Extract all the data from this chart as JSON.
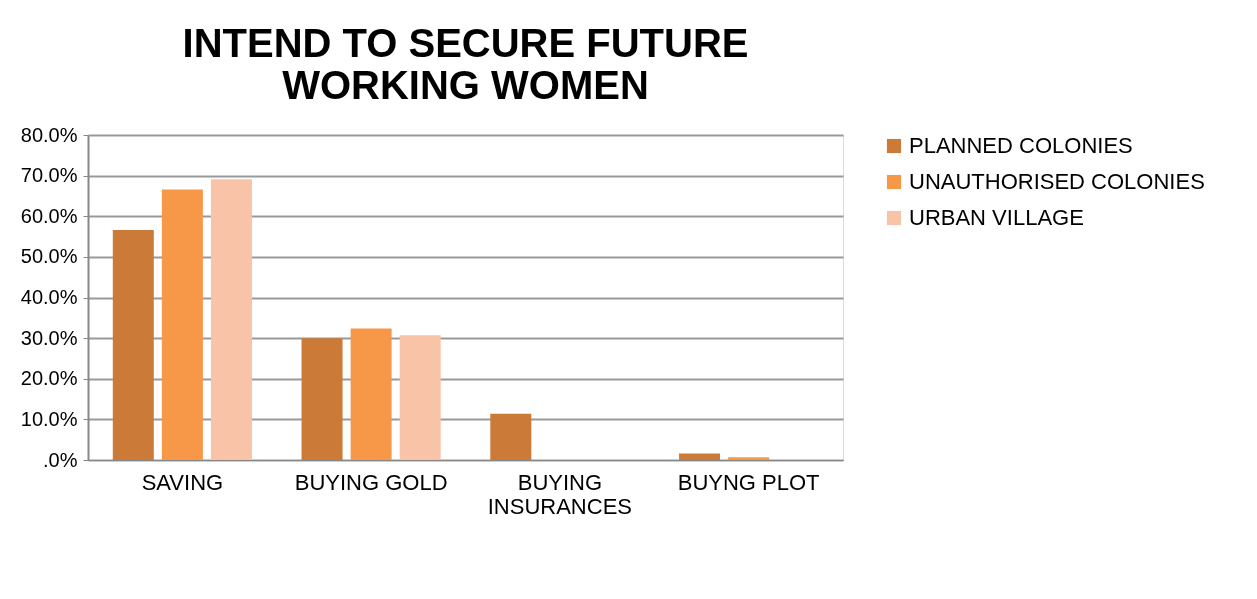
{
  "chart_data": {
    "type": "bar",
    "title": [
      "INTEND TO SECURE FUTURE",
      "WORKING WOMEN"
    ],
    "categories": [
      "SAVING",
      "BUYING GOLD",
      "BUYING INSURANCES",
      "BUYNG PLOT"
    ],
    "series": [
      {
        "name": "PLANNED COLONIES",
        "color": "#cc7a38",
        "values": [
          56.6,
          30.0,
          11.4,
          1.6
        ]
      },
      {
        "name": "UNAUTHORISED COLONIES",
        "color": "#f79848",
        "values": [
          66.6,
          32.4,
          null,
          0.7
        ]
      },
      {
        "name": "URBAN VILLAGE",
        "color": "#f9c3a8",
        "values": [
          69.1,
          30.7,
          null,
          null
        ]
      }
    ],
    "ylim": [
      0,
      80
    ],
    "yticks": [
      {
        "value": 0,
        "label": ".0%"
      },
      {
        "value": 10,
        "label": "10.0%"
      },
      {
        "value": 20,
        "label": "20.0%"
      },
      {
        "value": 30,
        "label": "30.0%"
      },
      {
        "value": 40,
        "label": "40.0%"
      },
      {
        "value": 50,
        "label": "50.0%"
      },
      {
        "value": 60,
        "label": "60.0%"
      },
      {
        "value": 70,
        "label": "70.0%"
      },
      {
        "value": 80,
        "label": "80.0%"
      }
    ],
    "grid": "y",
    "legend": "right"
  }
}
